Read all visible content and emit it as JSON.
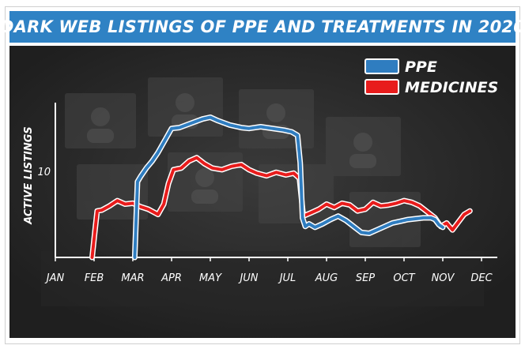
{
  "chart_data": {
    "type": "line",
    "title": "DARK WEB LISTINGS OF PPE AND TREATMENTS IN 2020",
    "xlabel": "",
    "ylabel": "ACTIVE LISTINGS",
    "categories": [
      "JAN",
      "FEB",
      "MAR",
      "APR",
      "MAY",
      "JUN",
      "JUL",
      "AUG",
      "SEP",
      "OCT",
      "NOV",
      "DEC"
    ],
    "y_ticks": [
      10
    ],
    "ylim": [
      0,
      18
    ],
    "legend_position": "top-right",
    "grid": false,
    "series": [
      {
        "name": "PPE",
        "color": "#2f7dc0",
        "points": [
          [
            2.05,
            0
          ],
          [
            2.12,
            8.8
          ],
          [
            2.2,
            9.4
          ],
          [
            2.35,
            10.4
          ],
          [
            2.5,
            11.2
          ],
          [
            2.65,
            12.2
          ],
          [
            2.85,
            13.8
          ],
          [
            3.0,
            15.0
          ],
          [
            3.2,
            15.1
          ],
          [
            3.5,
            15.6
          ],
          [
            3.8,
            16.1
          ],
          [
            4.0,
            16.3
          ],
          [
            4.2,
            15.9
          ],
          [
            4.5,
            15.4
          ],
          [
            4.8,
            15.1
          ],
          [
            5.0,
            15.0
          ],
          [
            5.3,
            15.2
          ],
          [
            5.6,
            15.0
          ],
          [
            5.9,
            14.8
          ],
          [
            6.1,
            14.6
          ],
          [
            6.25,
            14.2
          ],
          [
            6.32,
            11.0
          ],
          [
            6.38,
            4.6
          ],
          [
            6.45,
            3.6
          ],
          [
            6.55,
            3.9
          ],
          [
            6.7,
            3.5
          ],
          [
            6.9,
            3.9
          ],
          [
            7.1,
            4.4
          ],
          [
            7.3,
            4.8
          ],
          [
            7.5,
            4.3
          ],
          [
            7.7,
            3.6
          ],
          [
            7.9,
            2.9
          ],
          [
            8.1,
            2.8
          ],
          [
            8.3,
            3.2
          ],
          [
            8.5,
            3.6
          ],
          [
            8.7,
            4.0
          ],
          [
            8.9,
            4.2
          ],
          [
            9.1,
            4.4
          ],
          [
            9.3,
            4.5
          ],
          [
            9.5,
            4.6
          ],
          [
            9.7,
            4.6
          ],
          [
            9.8,
            4.4
          ],
          [
            9.9,
            3.8
          ],
          [
            10.0,
            3.5
          ]
        ]
      },
      {
        "name": "MEDICINES",
        "color": "#e81c1c",
        "points": [
          [
            0.95,
            0
          ],
          [
            1.02,
            3.0
          ],
          [
            1.08,
            5.4
          ],
          [
            1.2,
            5.5
          ],
          [
            1.4,
            6.0
          ],
          [
            1.6,
            6.6
          ],
          [
            1.8,
            6.2
          ],
          [
            2.0,
            6.3
          ],
          [
            2.2,
            5.9
          ],
          [
            2.4,
            5.6
          ],
          [
            2.65,
            5.0
          ],
          [
            2.8,
            6.2
          ],
          [
            2.92,
            8.6
          ],
          [
            3.05,
            10.2
          ],
          [
            3.25,
            10.4
          ],
          [
            3.45,
            11.2
          ],
          [
            3.65,
            11.6
          ],
          [
            3.85,
            10.9
          ],
          [
            4.05,
            10.4
          ],
          [
            4.3,
            10.2
          ],
          [
            4.55,
            10.6
          ],
          [
            4.8,
            10.8
          ],
          [
            5.0,
            10.2
          ],
          [
            5.2,
            9.8
          ],
          [
            5.45,
            9.5
          ],
          [
            5.7,
            9.9
          ],
          [
            5.95,
            9.6
          ],
          [
            6.15,
            9.8
          ],
          [
            6.3,
            9.2
          ],
          [
            6.4,
            4.8
          ],
          [
            6.6,
            5.2
          ],
          [
            6.8,
            5.6
          ],
          [
            7.0,
            6.2
          ],
          [
            7.2,
            5.8
          ],
          [
            7.4,
            6.3
          ],
          [
            7.6,
            6.1
          ],
          [
            7.8,
            5.4
          ],
          [
            8.0,
            5.6
          ],
          [
            8.2,
            6.4
          ],
          [
            8.4,
            6.0
          ],
          [
            8.6,
            6.1
          ],
          [
            8.8,
            6.3
          ],
          [
            9.0,
            6.6
          ],
          [
            9.2,
            6.4
          ],
          [
            9.4,
            6.0
          ],
          [
            9.6,
            5.3
          ],
          [
            9.8,
            4.6
          ],
          [
            9.95,
            3.6
          ],
          [
            10.1,
            4.0
          ],
          [
            10.25,
            3.2
          ],
          [
            10.4,
            4.1
          ],
          [
            10.55,
            5.0
          ],
          [
            10.7,
            5.4
          ]
        ]
      }
    ]
  },
  "colors": {
    "title_bar": "#2f82c4",
    "panel_bg": "#2b2b2b",
    "axis": "#ffffff"
  }
}
